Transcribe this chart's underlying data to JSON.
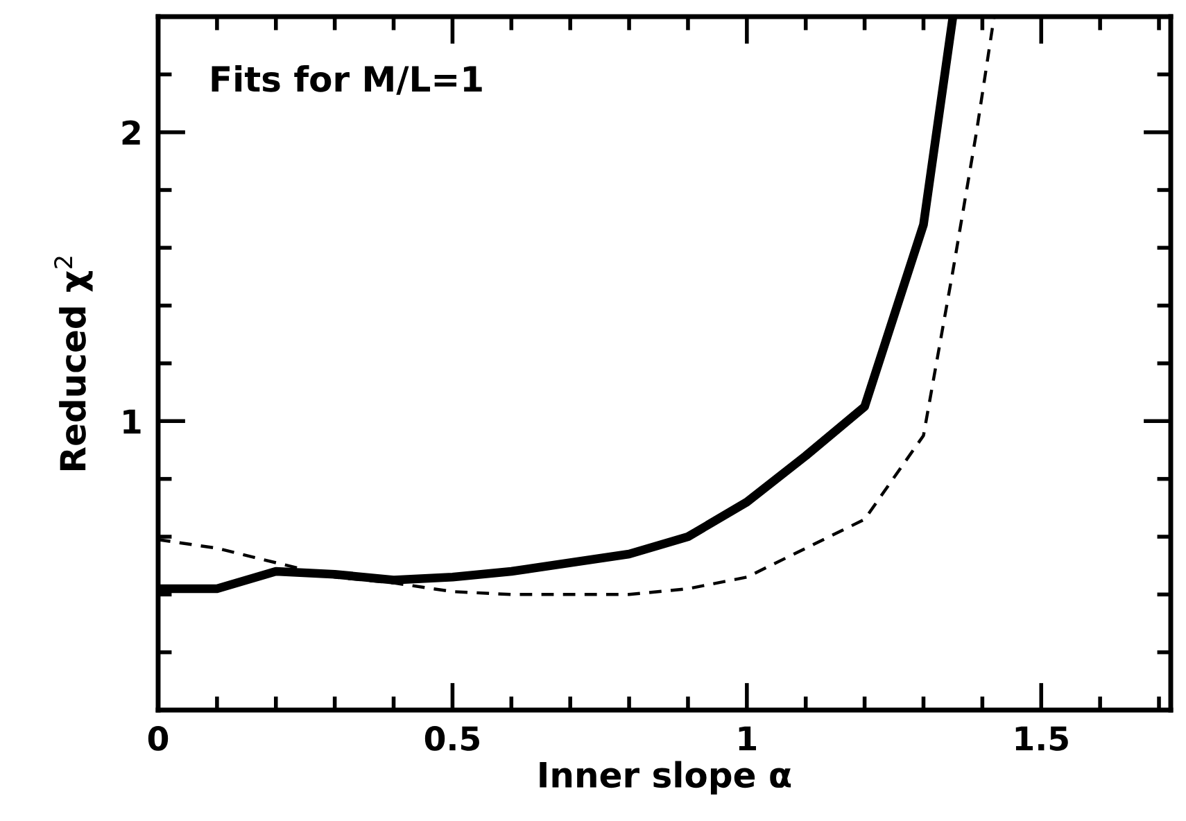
{
  "chart_data": {
    "type": "line",
    "xlabel": "Inner slope α",
    "ylabel": "Reduced χ$^{2}$",
    "annotations": [
      "Fits for M/L=1"
    ],
    "xlim": [
      0,
      1.72
    ],
    "ylim": [
      0,
      2.4
    ],
    "xticks": [
      0,
      {
        "value": 0.1,
        "label": null
      },
      {
        "value": 0.2,
        "label": null
      },
      {
        "value": 0.3,
        "label": null
      },
      {
        "value": 0.4,
        "label": null
      },
      0.5,
      {
        "value": 0.6,
        "label": null
      },
      {
        "value": 0.7,
        "label": null
      },
      {
        "value": 0.8,
        "label": null
      },
      {
        "value": 0.9,
        "label": null
      },
      1,
      {
        "value": 1.1,
        "label": null
      },
      {
        "value": 1.2,
        "label": null
      },
      {
        "value": 1.3,
        "label": null
      },
      {
        "value": 1.4,
        "label": null
      },
      1.5,
      {
        "value": 1.6,
        "label": null
      },
      {
        "value": 1.7,
        "label": null
      }
    ],
    "yticks": [
      {
        "value": 0.2,
        "label": null
      },
      {
        "value": 0.4,
        "label": null
      },
      {
        "value": 0.6,
        "label": null
      },
      {
        "value": 0.8,
        "label": null
      },
      1,
      {
        "value": 1.2,
        "label": null
      },
      {
        "value": 1.4,
        "label": null
      },
      {
        "value": 1.6,
        "label": null
      },
      {
        "value": 1.8,
        "label": null
      },
      2,
      {
        "value": 2.2,
        "label": null
      }
    ],
    "grid": false,
    "legend": false,
    "marker": "none",
    "series": [
      {
        "color": "#000000",
        "line_style": "solid",
        "x": [
          0,
          0.1,
          0.2,
          0.3,
          0.4,
          0.5,
          0.6,
          0.7,
          0.8,
          0.9,
          1.0,
          1.1,
          1.2,
          1.3,
          1.35
        ],
        "values": [
          0.42,
          0.42,
          0.48,
          0.47,
          0.45,
          0.46,
          0.48,
          0.51,
          0.54,
          0.6,
          0.72,
          0.88,
          1.05,
          1.68,
          2.4
        ]
      },
      {
        "color": "#000000",
        "line_style": "dashed",
        "x": [
          0,
          0.1,
          0.2,
          0.3,
          0.4,
          0.5,
          0.6,
          0.7,
          0.8,
          0.9,
          1.0,
          1.1,
          1.2,
          1.3,
          1.35,
          1.39,
          1.42
        ],
        "values": [
          0.59,
          0.56,
          0.51,
          0.46,
          0.44,
          0.41,
          0.4,
          0.4,
          0.4,
          0.42,
          0.46,
          0.56,
          0.66,
          0.95,
          1.52,
          2.0,
          2.4
        ]
      }
    ]
  }
}
